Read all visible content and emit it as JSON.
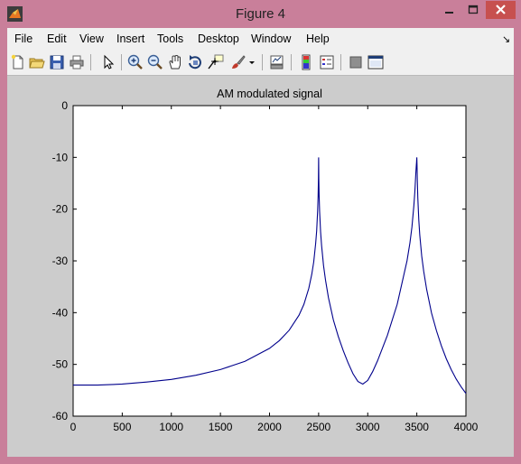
{
  "window": {
    "title": "Figure 4",
    "controls": [
      "minimize",
      "maximize",
      "close"
    ]
  },
  "menu": {
    "items": [
      "File",
      "Edit",
      "View",
      "Insert",
      "Tools",
      "Desktop",
      "Window",
      "Help"
    ]
  },
  "toolbar": {
    "buttons": [
      "new-figure-icon",
      "open-file-icon",
      "save-icon",
      "print-icon",
      "pointer-icon",
      "zoom-in-icon",
      "zoom-out-icon",
      "pan-icon",
      "rotate-3d-icon",
      "data-cursor-icon",
      "brush-icon",
      "dropdown-arrow-icon",
      "link-plot-icon",
      "colorbar-icon",
      "legend-icon",
      "hide-plot-tools-icon",
      "show-plot-tools-icon"
    ]
  },
  "chart_data": {
    "type": "line",
    "title": "AM modulated signal",
    "xlabel": "",
    "ylabel": "",
    "xlim": [
      0,
      4000
    ],
    "ylim": [
      -60,
      0
    ],
    "xticks": [
      0,
      500,
      1000,
      1500,
      2000,
      2500,
      3000,
      3500,
      4000
    ],
    "yticks": [
      0,
      -10,
      -20,
      -30,
      -40,
      -50,
      -60
    ],
    "grid": false,
    "line_color": "#00008b",
    "series": [
      {
        "x": [
          0,
          250,
          500,
          750,
          1000,
          1250,
          1500,
          1750,
          2000,
          2100,
          2200,
          2300,
          2350,
          2400,
          2430,
          2450,
          2470,
          2480,
          2490,
          2495,
          2497,
          2498,
          2500,
          2502,
          2503,
          2505,
          2510,
          2520,
          2530,
          2550,
          2570,
          2600,
          2650,
          2700,
          2750,
          2800,
          2850,
          2900,
          2950,
          3000,
          3050,
          3100,
          3200,
          3300,
          3400,
          3430,
          3450,
          3470,
          3480,
          3490,
          3495,
          3497,
          3498,
          3500,
          3502,
          3503,
          3505,
          3510,
          3520,
          3530,
          3550,
          3570,
          3600,
          3650,
          3700,
          3750,
          3800,
          3850,
          3900,
          3950,
          4000
        ],
        "y": [
          -54,
          -54,
          -53.8,
          -53.4,
          -52.9,
          -52.1,
          -51.0,
          -49.4,
          -46.9,
          -45.4,
          -43.4,
          -40.5,
          -38.4,
          -35.3,
          -32.6,
          -30.2,
          -26.6,
          -24.2,
          -20.3,
          -17.3,
          -15.3,
          -14.1,
          -10,
          -14.1,
          -15.3,
          -17.3,
          -20.4,
          -24.4,
          -27.0,
          -30.9,
          -33.7,
          -37.1,
          -41.4,
          -44.6,
          -47.3,
          -49.7,
          -51.8,
          -53.3,
          -53.8,
          -53.1,
          -51.4,
          -49.3,
          -44.4,
          -38.4,
          -30.0,
          -26.5,
          -23.5,
          -19.3,
          -16.6,
          -13.0,
          -11.5,
          -11.0,
          -10.6,
          -10,
          -11.4,
          -12.4,
          -14.4,
          -17.8,
          -22.1,
          -25.0,
          -29.1,
          -32.0,
          -35.5,
          -40.1,
          -43.5,
          -46.4,
          -48.9,
          -51.0,
          -52.8,
          -54.3,
          -55.6
        ]
      }
    ]
  }
}
